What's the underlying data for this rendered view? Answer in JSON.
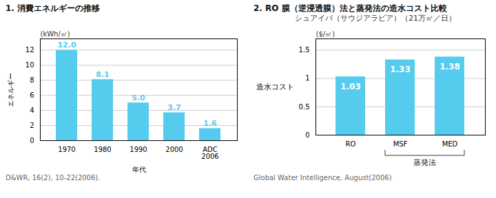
{
  "chart_data": [
    {
      "type": "bar",
      "title": "1. 消費エネルギーの推移",
      "ylabel": "エネルギー",
      "ylabel_unit": "(kWh/㎥)",
      "xlabel": "年代",
      "categories": [
        "1970",
        "1980",
        "1990",
        "2000",
        "ADC\n2006"
      ],
      "values": [
        12.0,
        8.1,
        5.0,
        3.7,
        1.6
      ],
      "value_labels": [
        "12.0",
        "8.1",
        "5.0",
        "3.7",
        "1.6"
      ],
      "data_labels": true,
      "color": "#55CCEE",
      "ylim": [
        0,
        13.5
      ],
      "yticks": [
        0,
        2,
        4,
        6,
        8,
        10,
        12
      ],
      "grid": true,
      "source": "D&WR, 16(2), 10-22(2006)."
    },
    {
      "type": "bar",
      "title": "2. RO 膜（逆浸透膜）法と蒸発法の造水コスト比較",
      "subtitle": "シュアイバ（サウジアラビア）（21万㎥／日）",
      "ylabel": "造水コスト",
      "ylabel_unit": "($/㎥)",
      "categories": [
        "RO",
        "MSF",
        "MED"
      ],
      "values": [
        1.03,
        1.33,
        1.38
      ],
      "data_labels": true,
      "color": "#55CCEE",
      "ylim": [
        0,
        1.7
      ],
      "yticks": [
        0,
        0.5,
        1.0,
        1.5
      ],
      "grid": true,
      "brace_categories": [
        "MSF",
        "MED"
      ],
      "brace_label": "蒸発法",
      "source": "Global Water Intelligence, August(2006)"
    }
  ]
}
